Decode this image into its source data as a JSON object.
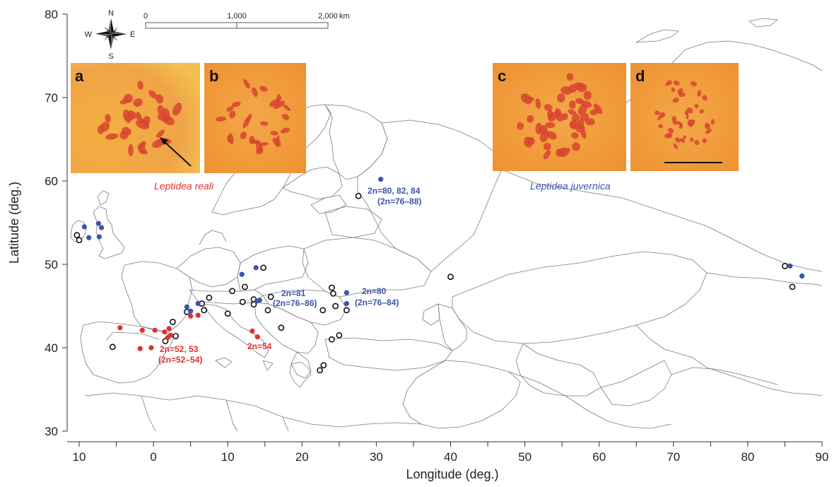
{
  "colors": {
    "reali": "#e03030",
    "juvernica": "#3a55a8",
    "unassigned_stroke": "#111111",
    "border": "#777777",
    "panel_bg": "#f0a040",
    "spot": "#d84530"
  },
  "axes": {
    "xlabel": "Longitude (deg.)",
    "ylabel": "Latitude (deg.)",
    "xlim": [
      -12,
      90
    ],
    "ylim": [
      30,
      80
    ],
    "xticks": [
      "10",
      "0",
      "10",
      "20",
      "30",
      "40",
      "50",
      "60",
      "70",
      "80",
      "90"
    ],
    "xtick_values": [
      -10,
      0,
      10,
      20,
      30,
      40,
      50,
      60,
      70,
      80,
      90
    ],
    "yticks": [
      "30",
      "40",
      "50",
      "60",
      "70",
      "80"
    ],
    "ytick_values": [
      30,
      40,
      50,
      60,
      70,
      80
    ]
  },
  "compass": {
    "n": "N",
    "s": "S",
    "e": "E",
    "w": "W"
  },
  "scale_bar": {
    "labels": [
      "0",
      "1,000",
      "2,000"
    ],
    "unit": "km"
  },
  "panels": [
    {
      "letter": "a"
    },
    {
      "letter": "b"
    },
    {
      "letter": "c"
    },
    {
      "letter": "d"
    }
  ],
  "species_labels": {
    "reali": "Leptidea reali",
    "juvernica": "Leptidea juvernica"
  },
  "annotations": {
    "spain_line1": "2n=52, 53",
    "spain_line2": "(2n=52–54)",
    "italy": "2n=54",
    "balkan_line1": "2n=81",
    "balkan_line2": "(2n=76–86)",
    "romania_line1": "2n=80",
    "romania_line2": "(2n=76–84)",
    "russia_line1": "2n=80, 82, 84",
    "russia_line2": "(2n=76–88)"
  },
  "points": {
    "reali": [
      [
        -4.5,
        42.4
      ],
      [
        -1.5,
        42.1
      ],
      [
        0.2,
        42.1
      ],
      [
        1.5,
        41.9
      ],
      [
        2.1,
        42.3
      ],
      [
        2.3,
        41.5
      ],
      [
        1.9,
        41.2
      ],
      [
        -1.8,
        39.9
      ],
      [
        -0.3,
        40.0
      ],
      [
        5.0,
        43.8
      ],
      [
        6.0,
        43.9
      ],
      [
        13.3,
        42.0
      ],
      [
        14.0,
        41.3
      ]
    ],
    "juvernica": [
      [
        -9.3,
        54.5
      ],
      [
        -7.4,
        54.9
      ],
      [
        -7.0,
        54.4
      ],
      [
        -8.7,
        53.2
      ],
      [
        -7.3,
        53.3
      ],
      [
        4.5,
        44.9
      ],
      [
        5.0,
        44.4
      ],
      [
        6.0,
        45.3
      ],
      [
        11.9,
        48.8
      ],
      [
        13.8,
        49.6
      ],
      [
        13.9,
        45.6
      ],
      [
        14.3,
        45.7
      ],
      [
        26.0,
        46.6
      ],
      [
        26.0,
        45.3
      ],
      [
        30.6,
        60.2
      ],
      [
        85.7,
        49.8
      ],
      [
        87.3,
        48.6
      ]
    ],
    "unassigned": [
      [
        -10.3,
        53.5
      ],
      [
        -10.0,
        52.9
      ],
      [
        -5.5,
        40.1
      ],
      [
        2.6,
        43.1
      ],
      [
        3.0,
        41.4
      ],
      [
        1.6,
        40.8
      ],
      [
        4.5,
        44.3
      ],
      [
        6.8,
        44.5
      ],
      [
        6.5,
        45.3
      ],
      [
        7.5,
        46.0
      ],
      [
        10.0,
        44.1
      ],
      [
        10.6,
        46.8
      ],
      [
        12.0,
        45.5
      ],
      [
        12.3,
        47.3
      ],
      [
        13.5,
        45.8
      ],
      [
        13.5,
        45.2
      ],
      [
        14.8,
        49.6
      ],
      [
        15.4,
        44.5
      ],
      [
        15.8,
        46.1
      ],
      [
        17.2,
        42.4
      ],
      [
        22.8,
        44.5
      ],
      [
        24.0,
        47.2
      ],
      [
        24.2,
        46.5
      ],
      [
        24.5,
        45.0
      ],
      [
        26.0,
        44.5
      ],
      [
        24.0,
        41.0
      ],
      [
        25.0,
        41.5
      ],
      [
        22.4,
        37.3
      ],
      [
        22.9,
        37.9
      ],
      [
        27.6,
        58.2
      ],
      [
        40.0,
        48.5
      ],
      [
        85.0,
        49.8
      ],
      [
        86.0,
        47.3
      ]
    ]
  }
}
